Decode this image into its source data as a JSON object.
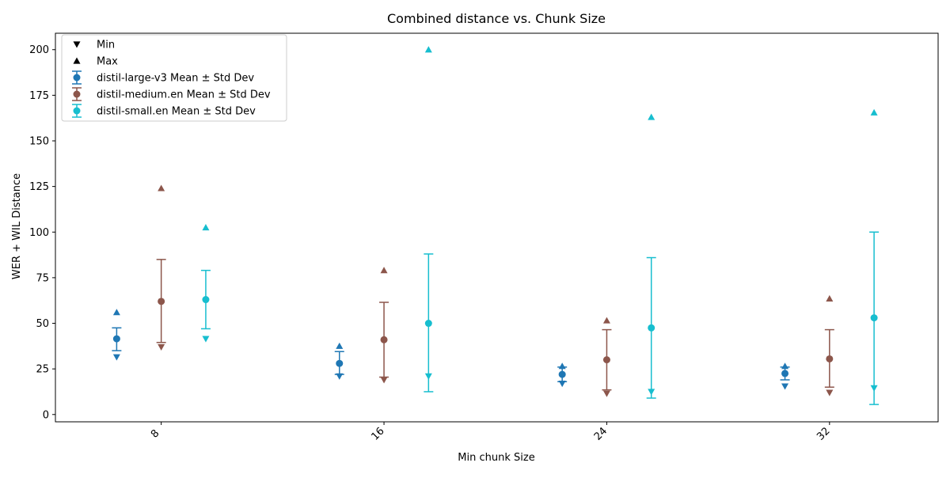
{
  "chart_data": {
    "type": "scatter",
    "title": "Combined distance vs. Chunk Size",
    "xlabel": "Min chunk Size",
    "ylabel": "WER + WIL Distance",
    "x_ticks": [
      8,
      16,
      24,
      32
    ],
    "y_ticks": [
      0,
      25,
      50,
      75,
      100,
      125,
      150,
      175,
      200
    ],
    "ylim": [
      -4,
      209
    ],
    "xlim": [
      4.2,
      35.9
    ],
    "grid": false,
    "legend_position": "top-left",
    "legend": [
      {
        "label": "Min",
        "marker": "triangle-down"
      },
      {
        "label": "Max",
        "marker": "triangle-up"
      },
      {
        "label": "distil-large-v3 Mean ± Std Dev",
        "marker": "errorbar",
        "color": "#1f77b4"
      },
      {
        "label": "distil-medium.en Mean ± Std Dev",
        "marker": "errorbar",
        "color": "#8c564b"
      },
      {
        "label": "distil-small.en Mean ± Std Dev",
        "marker": "errorbar",
        "color": "#17becf"
      }
    ],
    "series": [
      {
        "name": "distil-large-v3",
        "color": "#1f77b4",
        "points": [
          {
            "x": 6.4,
            "mean": 41.5,
            "std_low": 35,
            "std_high": 47.5,
            "min": 31.5,
            "max": 56
          },
          {
            "x": 14.4,
            "mean": 28,
            "std_low": 22,
            "std_high": 34.5,
            "min": 21,
            "max": 37.5
          },
          {
            "x": 22.4,
            "mean": 22,
            "std_low": 18,
            "std_high": 26,
            "min": 17,
            "max": 26.5
          },
          {
            "x": 30.4,
            "mean": 22.5,
            "std_low": 19,
            "std_high": 26,
            "min": 15.5,
            "max": 26.5
          }
        ]
      },
      {
        "name": "distil-medium.en",
        "color": "#8c564b",
        "points": [
          {
            "x": 8.0,
            "mean": 62,
            "std_low": 39.5,
            "std_high": 85,
            "min": 37,
            "max": 124
          },
          {
            "x": 16.0,
            "mean": 41,
            "std_low": 20.5,
            "std_high": 61.5,
            "min": 19,
            "max": 79
          },
          {
            "x": 24.0,
            "mean": 30,
            "std_low": 13.5,
            "std_high": 46.5,
            "min": 11.5,
            "max": 51.5
          },
          {
            "x": 32.0,
            "mean": 30.5,
            "std_low": 15,
            "std_high": 46.5,
            "min": 12,
            "max": 63.5
          }
        ]
      },
      {
        "name": "distil-small.en",
        "color": "#17becf",
        "points": [
          {
            "x": 9.6,
            "mean": 63,
            "std_low": 47,
            "std_high": 79,
            "min": 41.5,
            "max": 102.5
          },
          {
            "x": 17.6,
            "mean": 50,
            "std_low": 12.5,
            "std_high": 88,
            "min": 21,
            "max": 200
          },
          {
            "x": 25.6,
            "mean": 47.5,
            "std_low": 9,
            "std_high": 86,
            "min": 12.5,
            "max": 163
          },
          {
            "x": 33.6,
            "mean": 53,
            "std_low": 5.5,
            "std_high": 100,
            "min": 14.5,
            "max": 165.5
          }
        ]
      }
    ]
  }
}
